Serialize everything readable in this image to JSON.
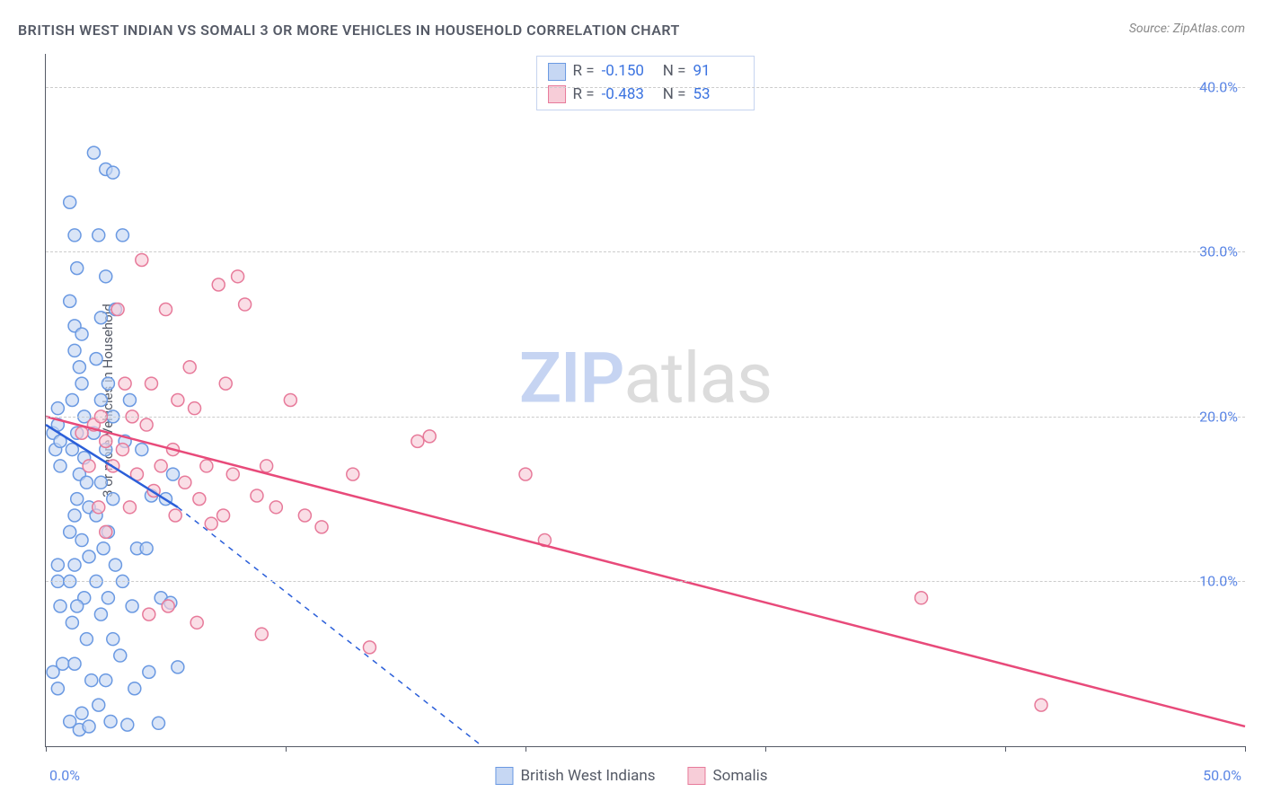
{
  "title": "BRITISH WEST INDIAN VS SOMALI 3 OR MORE VEHICLES IN HOUSEHOLD CORRELATION CHART",
  "source": "Source: ZipAtlas.com",
  "y_axis_label": "3 or more Vehicles in Household",
  "watermark": {
    "zip": "ZIP",
    "atlas": "atlas"
  },
  "chart": {
    "type": "scatter",
    "xlim": [
      0,
      50
    ],
    "ylim": [
      0,
      42
    ],
    "x_ticks": [
      0,
      10,
      20,
      30,
      40,
      50
    ],
    "x_tick_labels": [
      "0.0%",
      "",
      "",
      "",
      "",
      "50.0%"
    ],
    "y_ticks": [
      10,
      20,
      30,
      40
    ],
    "y_tick_labels": [
      "10.0%",
      "20.0%",
      "30.0%",
      "40.0%"
    ],
    "grid_color": "#cccccc",
    "axis_color": "#555a66",
    "background_color": "#ffffff",
    "marker_radius": 7,
    "marker_stroke_width": 1.5,
    "series": [
      {
        "name": "British West Indians",
        "fill": "#c6d7f3",
        "stroke": "#6a99e2",
        "fill_opacity": 0.65,
        "R": "-0.150",
        "N": "91",
        "trend": {
          "color": "#2b5fd9",
          "width": 2.5,
          "solid": {
            "x1": 0,
            "y1": 19.5,
            "x2": 5.5,
            "y2": 14.5
          },
          "dashed": {
            "x1": 5.5,
            "y1": 14.5,
            "x2": 18.2,
            "y2": 0
          }
        },
        "points": [
          [
            0.3,
            19.0
          ],
          [
            0.4,
            18.0
          ],
          [
            0.5,
            20.5
          ],
          [
            0.5,
            19.5
          ],
          [
            0.6,
            18.5
          ],
          [
            0.6,
            17.0
          ],
          [
            0.5,
            11.0
          ],
          [
            0.5,
            10.0
          ],
          [
            0.6,
            8.5
          ],
          [
            0.7,
            5.0
          ],
          [
            0.5,
            3.5
          ],
          [
            0.3,
            4.5
          ],
          [
            1.0,
            33.0
          ],
          [
            1.2,
            31.0
          ],
          [
            1.3,
            29.0
          ],
          [
            1.0,
            27.0
          ],
          [
            1.2,
            25.5
          ],
          [
            1.5,
            25.0
          ],
          [
            1.2,
            24.0
          ],
          [
            1.4,
            23.0
          ],
          [
            1.5,
            22.0
          ],
          [
            1.1,
            21.0
          ],
          [
            1.6,
            20.0
          ],
          [
            1.3,
            19.0
          ],
          [
            1.1,
            18.0
          ],
          [
            1.6,
            17.5
          ],
          [
            1.4,
            16.5
          ],
          [
            1.7,
            16.0
          ],
          [
            1.3,
            15.0
          ],
          [
            1.8,
            14.5
          ],
          [
            1.2,
            14.0
          ],
          [
            1.0,
            13.0
          ],
          [
            1.5,
            12.5
          ],
          [
            1.8,
            11.5
          ],
          [
            1.2,
            11.0
          ],
          [
            1.0,
            10.0
          ],
          [
            1.6,
            9.0
          ],
          [
            1.3,
            8.5
          ],
          [
            1.1,
            7.5
          ],
          [
            1.7,
            6.5
          ],
          [
            1.2,
            5.0
          ],
          [
            1.9,
            4.0
          ],
          [
            1.5,
            2.0
          ],
          [
            1.0,
            1.5
          ],
          [
            1.4,
            1.0
          ],
          [
            1.8,
            1.2
          ],
          [
            2.0,
            36.0
          ],
          [
            2.5,
            35.0
          ],
          [
            2.8,
            34.8
          ],
          [
            2.2,
            31.0
          ],
          [
            2.5,
            28.5
          ],
          [
            2.3,
            26.0
          ],
          [
            2.9,
            26.5
          ],
          [
            2.1,
            23.5
          ],
          [
            2.6,
            22.0
          ],
          [
            2.3,
            21.0
          ],
          [
            2.8,
            20.0
          ],
          [
            2.0,
            19.0
          ],
          [
            2.5,
            18.0
          ],
          [
            2.3,
            16.0
          ],
          [
            2.8,
            15.0
          ],
          [
            2.1,
            14.0
          ],
          [
            2.6,
            13.0
          ],
          [
            2.4,
            12.0
          ],
          [
            2.9,
            11.0
          ],
          [
            2.1,
            10.0
          ],
          [
            2.6,
            9.0
          ],
          [
            2.3,
            8.0
          ],
          [
            2.8,
            6.5
          ],
          [
            2.5,
            4.0
          ],
          [
            2.2,
            2.5
          ],
          [
            2.7,
            1.5
          ],
          [
            3.2,
            31.0
          ],
          [
            3.5,
            21.0
          ],
          [
            3.3,
            18.5
          ],
          [
            3.8,
            12.0
          ],
          [
            3.2,
            10.0
          ],
          [
            3.6,
            8.5
          ],
          [
            3.1,
            5.5
          ],
          [
            3.7,
            3.5
          ],
          [
            3.4,
            1.3
          ],
          [
            4.0,
            18.0
          ],
          [
            4.4,
            15.2
          ],
          [
            4.2,
            12.0
          ],
          [
            4.8,
            9.0
          ],
          [
            4.3,
            4.5
          ],
          [
            5.0,
            15.0
          ],
          [
            5.3,
            16.5
          ],
          [
            5.5,
            4.8
          ],
          [
            4.7,
            1.4
          ],
          [
            5.2,
            8.7
          ]
        ]
      },
      {
        "name": "Somalis",
        "fill": "#f7cdd8",
        "stroke": "#e77a9a",
        "fill_opacity": 0.65,
        "R": "-0.483",
        "N": "53",
        "trend": {
          "color": "#e84a7a",
          "width": 2.5,
          "solid": {
            "x1": 0,
            "y1": 20.0,
            "x2": 50,
            "y2": 1.2
          },
          "dashed": null
        },
        "points": [
          [
            1.5,
            19.0
          ],
          [
            1.8,
            17.0
          ],
          [
            2.0,
            19.5
          ],
          [
            2.3,
            20.0
          ],
          [
            2.5,
            18.5
          ],
          [
            2.8,
            17.0
          ],
          [
            2.2,
            14.5
          ],
          [
            2.5,
            13.0
          ],
          [
            3.0,
            26.5
          ],
          [
            3.3,
            22.0
          ],
          [
            3.6,
            20.0
          ],
          [
            3.2,
            18.0
          ],
          [
            3.8,
            16.5
          ],
          [
            3.5,
            14.5
          ],
          [
            4.0,
            29.5
          ],
          [
            4.4,
            22.0
          ],
          [
            4.2,
            19.5
          ],
          [
            4.8,
            17.0
          ],
          [
            4.5,
            15.5
          ],
          [
            4.3,
            8.0
          ],
          [
            5.0,
            26.5
          ],
          [
            5.5,
            21.0
          ],
          [
            5.3,
            18.0
          ],
          [
            5.8,
            16.0
          ],
          [
            5.4,
            14.0
          ],
          [
            5.1,
            8.5
          ],
          [
            6.0,
            23.0
          ],
          [
            6.2,
            20.5
          ],
          [
            6.7,
            17.0
          ],
          [
            6.4,
            15.0
          ],
          [
            6.9,
            13.5
          ],
          [
            6.3,
            7.5
          ],
          [
            7.2,
            28.0
          ],
          [
            7.5,
            22.0
          ],
          [
            7.8,
            16.5
          ],
          [
            7.4,
            14.0
          ],
          [
            8.0,
            28.5
          ],
          [
            8.3,
            26.8
          ],
          [
            8.8,
            15.2
          ],
          [
            9.2,
            17.0
          ],
          [
            9.6,
            14.5
          ],
          [
            10.2,
            21.0
          ],
          [
            10.8,
            14.0
          ],
          [
            11.5,
            13.3
          ],
          [
            12.8,
            16.5
          ],
          [
            13.5,
            6.0
          ],
          [
            15.5,
            18.5
          ],
          [
            16.0,
            18.8
          ],
          [
            20.0,
            16.5
          ],
          [
            20.8,
            12.5
          ],
          [
            36.5,
            9.0
          ],
          [
            41.5,
            2.5
          ],
          [
            9.0,
            6.8
          ]
        ]
      }
    ]
  },
  "stats_box": {
    "rows": [
      {
        "swatch_fill": "#c6d7f3",
        "swatch_stroke": "#6a99e2",
        "R": "-0.150",
        "N": "91"
      },
      {
        "swatch_fill": "#f7cdd8",
        "swatch_stroke": "#e77a9a",
        "R": "-0.483",
        "N": "53"
      }
    ]
  },
  "bottom_legend": [
    {
      "swatch_fill": "#c6d7f3",
      "swatch_stroke": "#6a99e2",
      "label": "British West Indians"
    },
    {
      "swatch_fill": "#f7cdd8",
      "swatch_stroke": "#e77a9a",
      "label": "Somalis"
    }
  ]
}
